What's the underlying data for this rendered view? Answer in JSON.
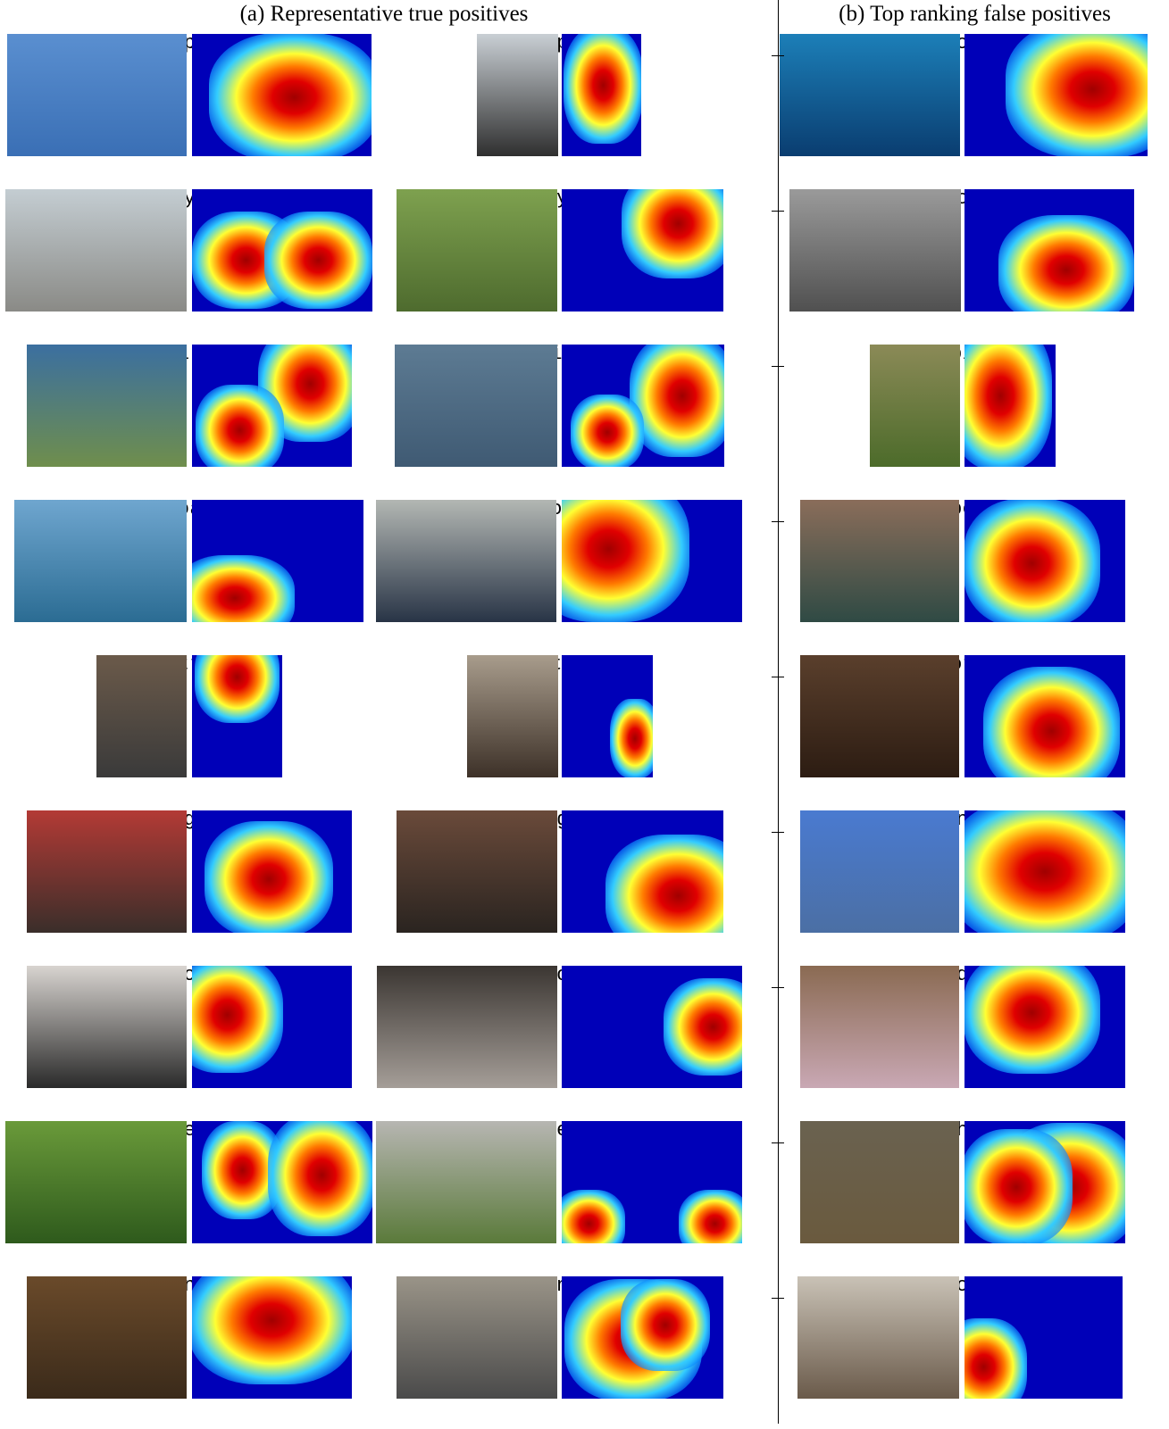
{
  "titles": {
    "a": "(a) Representative true positives",
    "b": "(b) Top ranking false positives"
  },
  "rows": [
    {
      "label": "aeroplane"
    },
    {
      "label": "bicycle"
    },
    {
      "label": "bird"
    },
    {
      "label": "boat"
    },
    {
      "label": "bottle"
    },
    {
      "label": "diningtable"
    },
    {
      "label": "dog"
    },
    {
      "label": "sheep"
    },
    {
      "label": "tvmonitor"
    }
  ],
  "colors": {
    "heat_low": "#0000b8",
    "heat_mid": "#33ccff",
    "heat_high": "#ffff33",
    "heat_peak": "#a00000"
  }
}
